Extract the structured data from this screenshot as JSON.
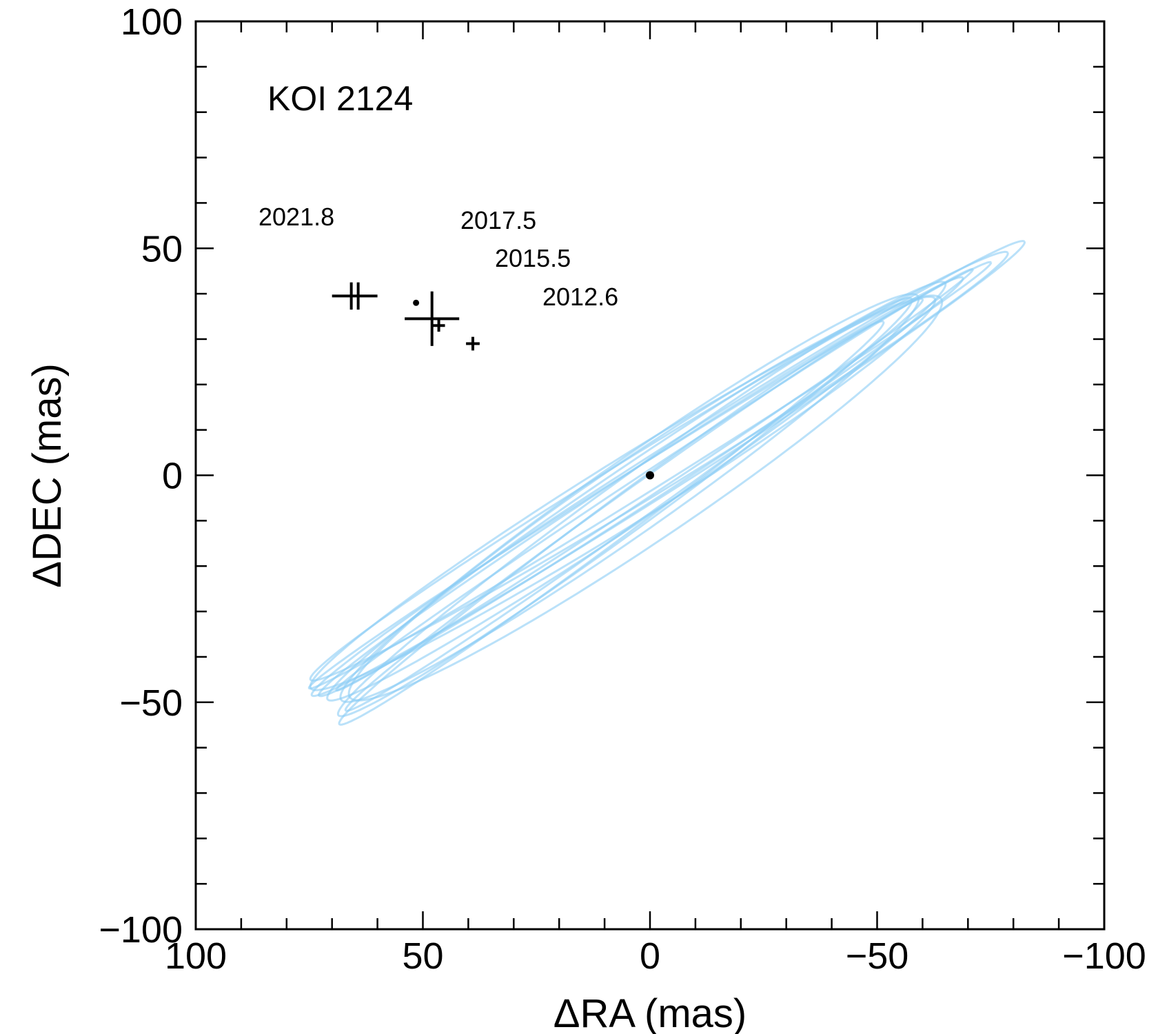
{
  "chart_data": {
    "type": "scatter",
    "title": "KOI 2124",
    "xlabel": "ΔRA (mas)",
    "ylabel": "ΔDEC (mas)",
    "xlim": [
      100,
      -100
    ],
    "ylim": [
      -100,
      100
    ],
    "x_ticks": [
      100,
      50,
      0,
      -50,
      -100
    ],
    "y_ticks": [
      100,
      50,
      0,
      -50,
      -100
    ],
    "x_tick_labels": [
      "100",
      "50",
      "0",
      "−50",
      "−100"
    ],
    "y_tick_labels": [
      "100",
      "50",
      "0",
      "−50",
      "−100"
    ],
    "minor_tick_step": 10,
    "grid": false,
    "primary_star": {
      "x": 0,
      "y": 0
    },
    "measurements": [
      {
        "epoch": "2012.6",
        "x": 39,
        "y": 29,
        "x_err": 1.5,
        "y_err": 1.5
      },
      {
        "epoch": "2015.5",
        "x": 46.5,
        "y": 33,
        "x_err": 1.2,
        "y_err": 1.2
      },
      {
        "epoch": "2017.5",
        "x": 48,
        "y": 34.5,
        "x_err": 6,
        "y_err": 6
      },
      {
        "epoch": "2021.8",
        "x": 65,
        "y": 39.5,
        "x_err": 5,
        "y_err": 3
      }
    ],
    "predicted_position": {
      "x": 51.5,
      "y": 38
    },
    "orbit_color": "#8ccdf5",
    "point_color": "#000000",
    "orbits": [
      {
        "cx": 4.5,
        "cy": -5.0,
        "a": 77.5,
        "b": 8.0,
        "pa": 145.0
      },
      {
        "cx": 0.0,
        "cy": 0.0,
        "a": 88.5,
        "b": 3.0,
        "pa": 148.0
      },
      {
        "cx": 3.0,
        "cy": -3.5,
        "a": 82.0,
        "b": 6.0,
        "pa": 146.0
      },
      {
        "cx": -2.0,
        "cy": 2.0,
        "a": 90.0,
        "b": 5.0,
        "pa": 148.5
      },
      {
        "cx": 5.5,
        "cy": -7.0,
        "a": 78.0,
        "b": 5.5,
        "pa": 144.0
      },
      {
        "cx": 2.0,
        "cy": -2.5,
        "a": 84.5,
        "b": 4.0,
        "pa": 147.0
      },
      {
        "cx": -1.0,
        "cy": -1.0,
        "a": 84.0,
        "b": 2.5,
        "pa": 146.5
      },
      {
        "cx": 8.5,
        "cy": -10.5,
        "a": 74.5,
        "b": 4.0,
        "pa": 143.5
      },
      {
        "cx": 1.0,
        "cy": -5.0,
        "a": 78.5,
        "b": 9.5,
        "pa": 146.0
      },
      {
        "cx": -4.0,
        "cy": 1.5,
        "a": 93.0,
        "b": 4.5,
        "pa": 147.5
      },
      {
        "cx": 6.0,
        "cy": -4.0,
        "a": 81.0,
        "b": 7.0,
        "pa": 148.0
      },
      {
        "cx": 3.5,
        "cy": -6.5,
        "a": 78.0,
        "b": 3.5,
        "pa": 144.5
      }
    ]
  }
}
